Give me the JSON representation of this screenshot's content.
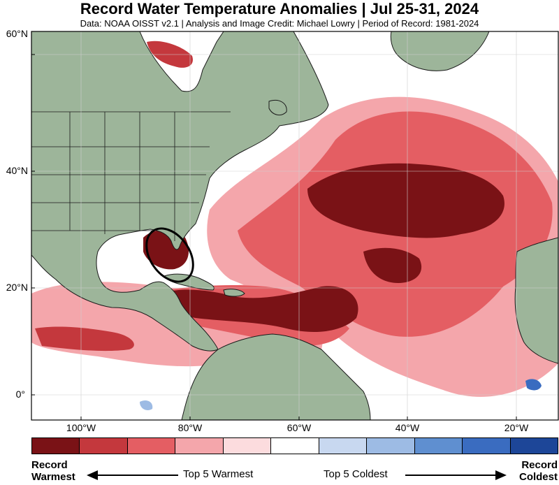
{
  "header": {
    "title": "Record Water Temperature Anomalies | Jul 25-31, 2024",
    "subtitle": "Data: NOAA OISST v2.1 | Analysis and Image Credit: Michael Lowry | Period of Record: 1981-2024"
  },
  "map": {
    "lat_labels": [
      "60°N",
      "40°N",
      "20°N",
      "0°"
    ],
    "lon_labels": [
      "100°W",
      "80°W",
      "60°W",
      "40°W",
      "20°W"
    ],
    "colors": {
      "land": "#9db59a",
      "ocean": "#ffffff",
      "record_warmest": "#7a1216",
      "top2_warm": "#c4383d",
      "top3_warm": "#e45e63",
      "top4_warm": "#f4a6ab",
      "top5_warm": "#fcdcde",
      "top5_cold": "#c8d8f0",
      "top4_cold": "#9dbbe4",
      "top3_cold": "#5f8fd0",
      "top2_cold": "#3a6cc0",
      "record_coldest": "#1d4698",
      "highlight_ellipse": "#000000"
    }
  },
  "legend": {
    "swatches": [
      "#7a1216",
      "#c4383d",
      "#e45e63",
      "#f4a6ab",
      "#fcdcde",
      "#ffffff",
      "#c8d8f0",
      "#9dbbe4",
      "#5f8fd0",
      "#3a6cc0",
      "#1d4698"
    ],
    "left_label_line1": "Record",
    "left_label_line2": "Warmest",
    "right_label_line1": "Record",
    "right_label_line2": "Coldest",
    "warm_label": "Top 5 Warmest",
    "cold_label": "Top 5 Coldest"
  }
}
